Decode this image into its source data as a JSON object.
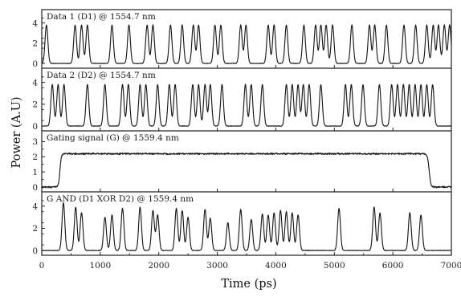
{
  "chart_data": {
    "type": "line",
    "xlabel": "Time (ps)",
    "ylabel": "Power (A.U)",
    "xlim": [
      0,
      7000
    ],
    "x_ticks": [
      "0",
      "1000",
      "2000",
      "3000",
      "4000",
      "5000",
      "6000",
      "7000"
    ],
    "grid": false,
    "panels": [
      {
        "label": "Data 1 (D1) @ 1554.7 nm",
        "ylim": [
          0,
          5
        ],
        "y_ticks": [
          "0",
          "2",
          "4"
        ],
        "pulse_times_ps": [
          80,
          570,
          680,
          780,
          1200,
          1490,
          1800,
          1900,
          2200,
          2400,
          2590,
          2680,
          2960,
          3060,
          3400,
          3490,
          3870,
          3970,
          4180,
          4480,
          4680,
          4770,
          4860,
          4970,
          5300,
          5600,
          5690,
          5890,
          6190,
          6390,
          6580,
          6690,
          6780,
          6880,
          6970
        ],
        "pulse_peak": 3.8
      },
      {
        "label": "Data 2 (D2) @ 1554.7 nm",
        "ylim": [
          0,
          5
        ],
        "y_ticks": [
          "0",
          "2",
          "4"
        ],
        "pulse_times_ps": [
          180,
          280,
          380,
          780,
          1080,
          1380,
          1480,
          1680,
          1780,
          1980,
          2180,
          2280,
          2580,
          2680,
          2790,
          2880,
          3080,
          3480,
          3580,
          3770,
          4180,
          4280,
          4380,
          4470,
          4570,
          4770,
          5190,
          5290,
          5490,
          5770,
          5980,
          6080,
          6180,
          6280,
          6380,
          6480,
          6580,
          6680
        ],
        "pulse_peak": 3.8
      },
      {
        "label": "Gating signal (G) @ 1559.4 nm",
        "ylim": [
          0,
          3.5
        ],
        "y_ticks": [
          "0",
          "1",
          "2",
          "3"
        ],
        "window_ps": [
          310,
          6620
        ],
        "level": 2.2
      },
      {
        "label": "G AND (D1 XOR D2) @ 1559.4 nm",
        "ylim": [
          0,
          5
        ],
        "y_ticks": [
          "0",
          "2",
          "4"
        ],
        "pulses": [
          {
            "t": 370,
            "a": 4.3
          },
          {
            "t": 580,
            "a": 3.9
          },
          {
            "t": 680,
            "a": 3.4
          },
          {
            "t": 1080,
            "a": 3.0
          },
          {
            "t": 1200,
            "a": 3.2
          },
          {
            "t": 1380,
            "a": 3.8
          },
          {
            "t": 1680,
            "a": 3.9
          },
          {
            "t": 1900,
            "a": 3.6
          },
          {
            "t": 1980,
            "a": 3.2
          },
          {
            "t": 2300,
            "a": 3.8
          },
          {
            "t": 2400,
            "a": 3.6
          },
          {
            "t": 2500,
            "a": 3.0
          },
          {
            "t": 2790,
            "a": 3.7
          },
          {
            "t": 2880,
            "a": 2.9
          },
          {
            "t": 3180,
            "a": 2.5
          },
          {
            "t": 3400,
            "a": 3.7
          },
          {
            "t": 3580,
            "a": 2.8
          },
          {
            "t": 3770,
            "a": 3.3
          },
          {
            "t": 3870,
            "a": 3.2
          },
          {
            "t": 3970,
            "a": 3.4
          },
          {
            "t": 4080,
            "a": 3.6
          },
          {
            "t": 4180,
            "a": 3.5
          },
          {
            "t": 4280,
            "a": 3.4
          },
          {
            "t": 4380,
            "a": 3.2
          },
          {
            "t": 5080,
            "a": 3.8
          },
          {
            "t": 5680,
            "a": 3.9
          },
          {
            "t": 5780,
            "a": 3.4
          },
          {
            "t": 6290,
            "a": 3.4
          },
          {
            "t": 6480,
            "a": 3.2
          }
        ]
      }
    ]
  }
}
